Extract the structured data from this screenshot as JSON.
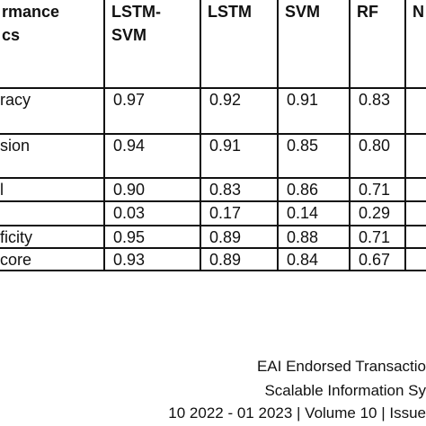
{
  "table": {
    "header": [
      "rmance\ncs",
      "LSTM-\nSVM",
      "LSTM",
      "SVM",
      "RF",
      "N"
    ],
    "rows": [
      {
        "label": "racy",
        "values": [
          "0.97",
          "0.92",
          "0.91",
          "0.83"
        ]
      },
      {
        "label": "sion",
        "values": [
          "0.94",
          "0.91",
          "0.85",
          "0.80"
        ]
      },
      {
        "label": "l",
        "values": [
          "0.90",
          "0.83",
          "0.86",
          "0.71"
        ]
      },
      {
        "values": [
          "0.03",
          "0.17",
          "0.14",
          "0.29"
        ]
      },
      {
        "label": "ficity",
        "values": [
          "0.95",
          "0.89",
          "0.88",
          "0.71"
        ]
      },
      {
        "label": "core",
        "values": [
          "0.93",
          "0.89",
          "0.84",
          "0.67"
        ]
      }
    ]
  },
  "footer": [
    "EAI Endorsed Transactio",
    "Scalable Information Sy",
    "10 2022 - 01 2023 | Volume 10 | Issue"
  ]
}
